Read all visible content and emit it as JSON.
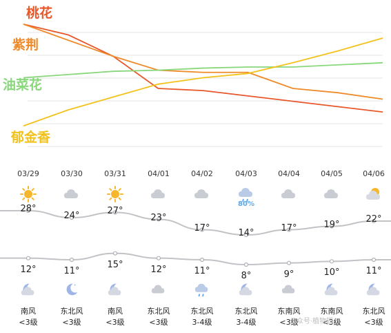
{
  "chart_data": {
    "type": "line",
    "x": [
      0,
      1,
      2,
      3,
      4,
      5,
      6,
      7,
      8
    ],
    "series": [
      {
        "name": "桃花",
        "color": "#e8572a",
        "values": [
          100,
          90,
          70,
          40,
          38,
          33,
          28,
          23,
          18
        ]
      },
      {
        "name": "紫荆",
        "color": "#ef8a2a",
        "values": [
          100,
          85,
          70,
          57,
          55,
          55,
          40,
          36,
          30
        ]
      },
      {
        "name": "油菜花",
        "color": "#88d77a",
        "values": [
          50,
          53,
          56,
          57,
          59,
          60,
          60,
          62,
          64
        ]
      },
      {
        "name": "郁金香",
        "color": "#f2c21b",
        "values": [
          5,
          20,
          32,
          44,
          50,
          54,
          64,
          75,
          87
        ]
      }
    ],
    "ylim": [
      0,
      100
    ],
    "grid": true
  },
  "forecast": [
    {
      "date": "03/29",
      "day_icon": "sun-icon",
      "precip": "",
      "high": "28°",
      "low": "12°",
      "night_icon": "moon-cloud-icon",
      "wind_dir": "南风",
      "wind_level": "<3级",
      "high_val": 28,
      "low_val": 12
    },
    {
      "date": "03/30",
      "day_icon": "cloud-icon",
      "precip": "",
      "high": "24°",
      "low": "11°",
      "night_icon": "moon-icon",
      "wind_dir": "东北风",
      "wind_level": "<3级",
      "high_val": 24,
      "low_val": 11
    },
    {
      "date": "03/31",
      "day_icon": "sun-icon",
      "precip": "",
      "high": "27°",
      "low": "15°",
      "night_icon": "moon-cloud-icon",
      "wind_dir": "南风",
      "wind_level": "<3级",
      "high_val": 27,
      "low_val": 15
    },
    {
      "date": "04/01",
      "day_icon": "cloud-icon",
      "precip": "",
      "high": "23°",
      "low": "12°",
      "night_icon": "cloud-icon",
      "wind_dir": "东北风",
      "wind_level": "<3级",
      "high_val": 23,
      "low_val": 12
    },
    {
      "date": "04/02",
      "day_icon": "cloud-icon",
      "precip": "",
      "high": "17°",
      "low": "11°",
      "night_icon": "rain-cloud-icon",
      "wind_dir": "东北风",
      "wind_level": "3-4级",
      "high_val": 17,
      "low_val": 11
    },
    {
      "date": "04/03",
      "day_icon": "rain-cloud-icon",
      "precip": "80%",
      "high": "14°",
      "low": "8°",
      "night_icon": "moon-cloud-icon",
      "wind_dir": "东北风",
      "wind_level": "3-4级",
      "high_val": 14,
      "low_val": 8
    },
    {
      "date": "04/04",
      "day_icon": "cloud-icon",
      "precip": "",
      "high": "17°",
      "low": "9°",
      "night_icon": "cloud-icon",
      "wind_dir": "东南风",
      "wind_level": "<3级",
      "high_val": 17,
      "low_val": 9
    },
    {
      "date": "04/05",
      "day_icon": "cloud-icon",
      "precip": "",
      "high": "19°",
      "low": "10°",
      "night_icon": "moon-cloud-icon",
      "wind_dir": "东南风",
      "wind_level": "<3级",
      "high_val": 19,
      "low_val": 10
    },
    {
      "date": "04/06",
      "day_icon": "sun-cloud-icon",
      "precip": "",
      "high": "22°",
      "low": "11°",
      "night_icon": "moon-cloud-icon",
      "wind_dir": "东北风",
      "wind_level": "<3级",
      "high_val": 22,
      "low_val": 11
    }
  ],
  "watermark": "公众号·植物园"
}
